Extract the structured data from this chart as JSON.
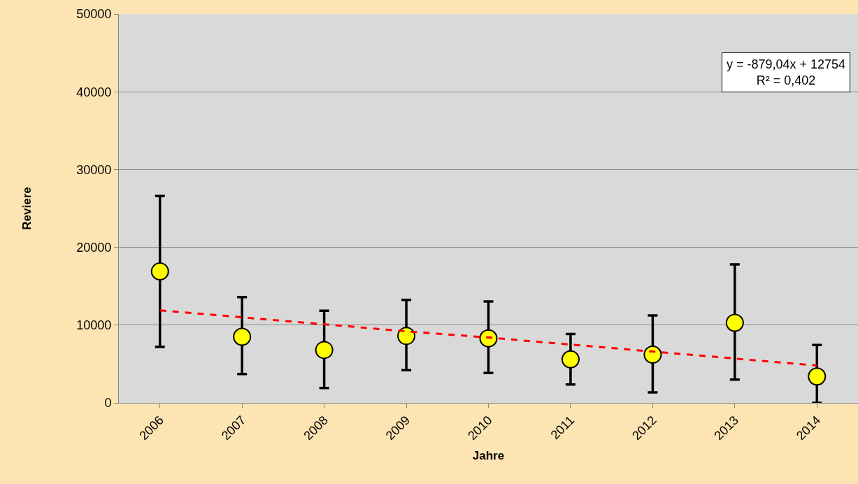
{
  "chart_data": {
    "type": "scatter",
    "xlabel": "Jahre",
    "ylabel": "Reviere",
    "categories": [
      "2006",
      "2007",
      "2008",
      "2009",
      "2010",
      "2011",
      "2012",
      "2013",
      "2014"
    ],
    "series": [
      {
        "color": "#ffff00",
        "marker": "circle",
        "values": [
          16900,
          8500,
          6800,
          8600,
          8300,
          5600,
          6200,
          10300,
          3400
        ],
        "errors": [
          [
            7200,
            26600
          ],
          [
            3700,
            13600
          ],
          [
            1900,
            11850
          ],
          [
            4200,
            13250
          ],
          [
            3850,
            13050
          ],
          [
            2350,
            8850
          ],
          [
            1350,
            11250
          ],
          [
            3000,
            17800
          ],
          [
            0,
            7450
          ]
        ]
      },
      {
        "type": "line",
        "color": "#ff0000",
        "line_style": "dashed",
        "marker": "none",
        "values": [
          11900,
          11000,
          10100,
          9200,
          8400,
          7500,
          6600,
          5700,
          4800
        ]
      }
    ],
    "ylim": [
      0,
      50000
    ],
    "yticks": [
      0,
      10000,
      20000,
      30000,
      40000,
      50000
    ],
    "grid": "y",
    "annotations": [
      "y = -879,04x + 12754\nR² = 0,402"
    ]
  }
}
